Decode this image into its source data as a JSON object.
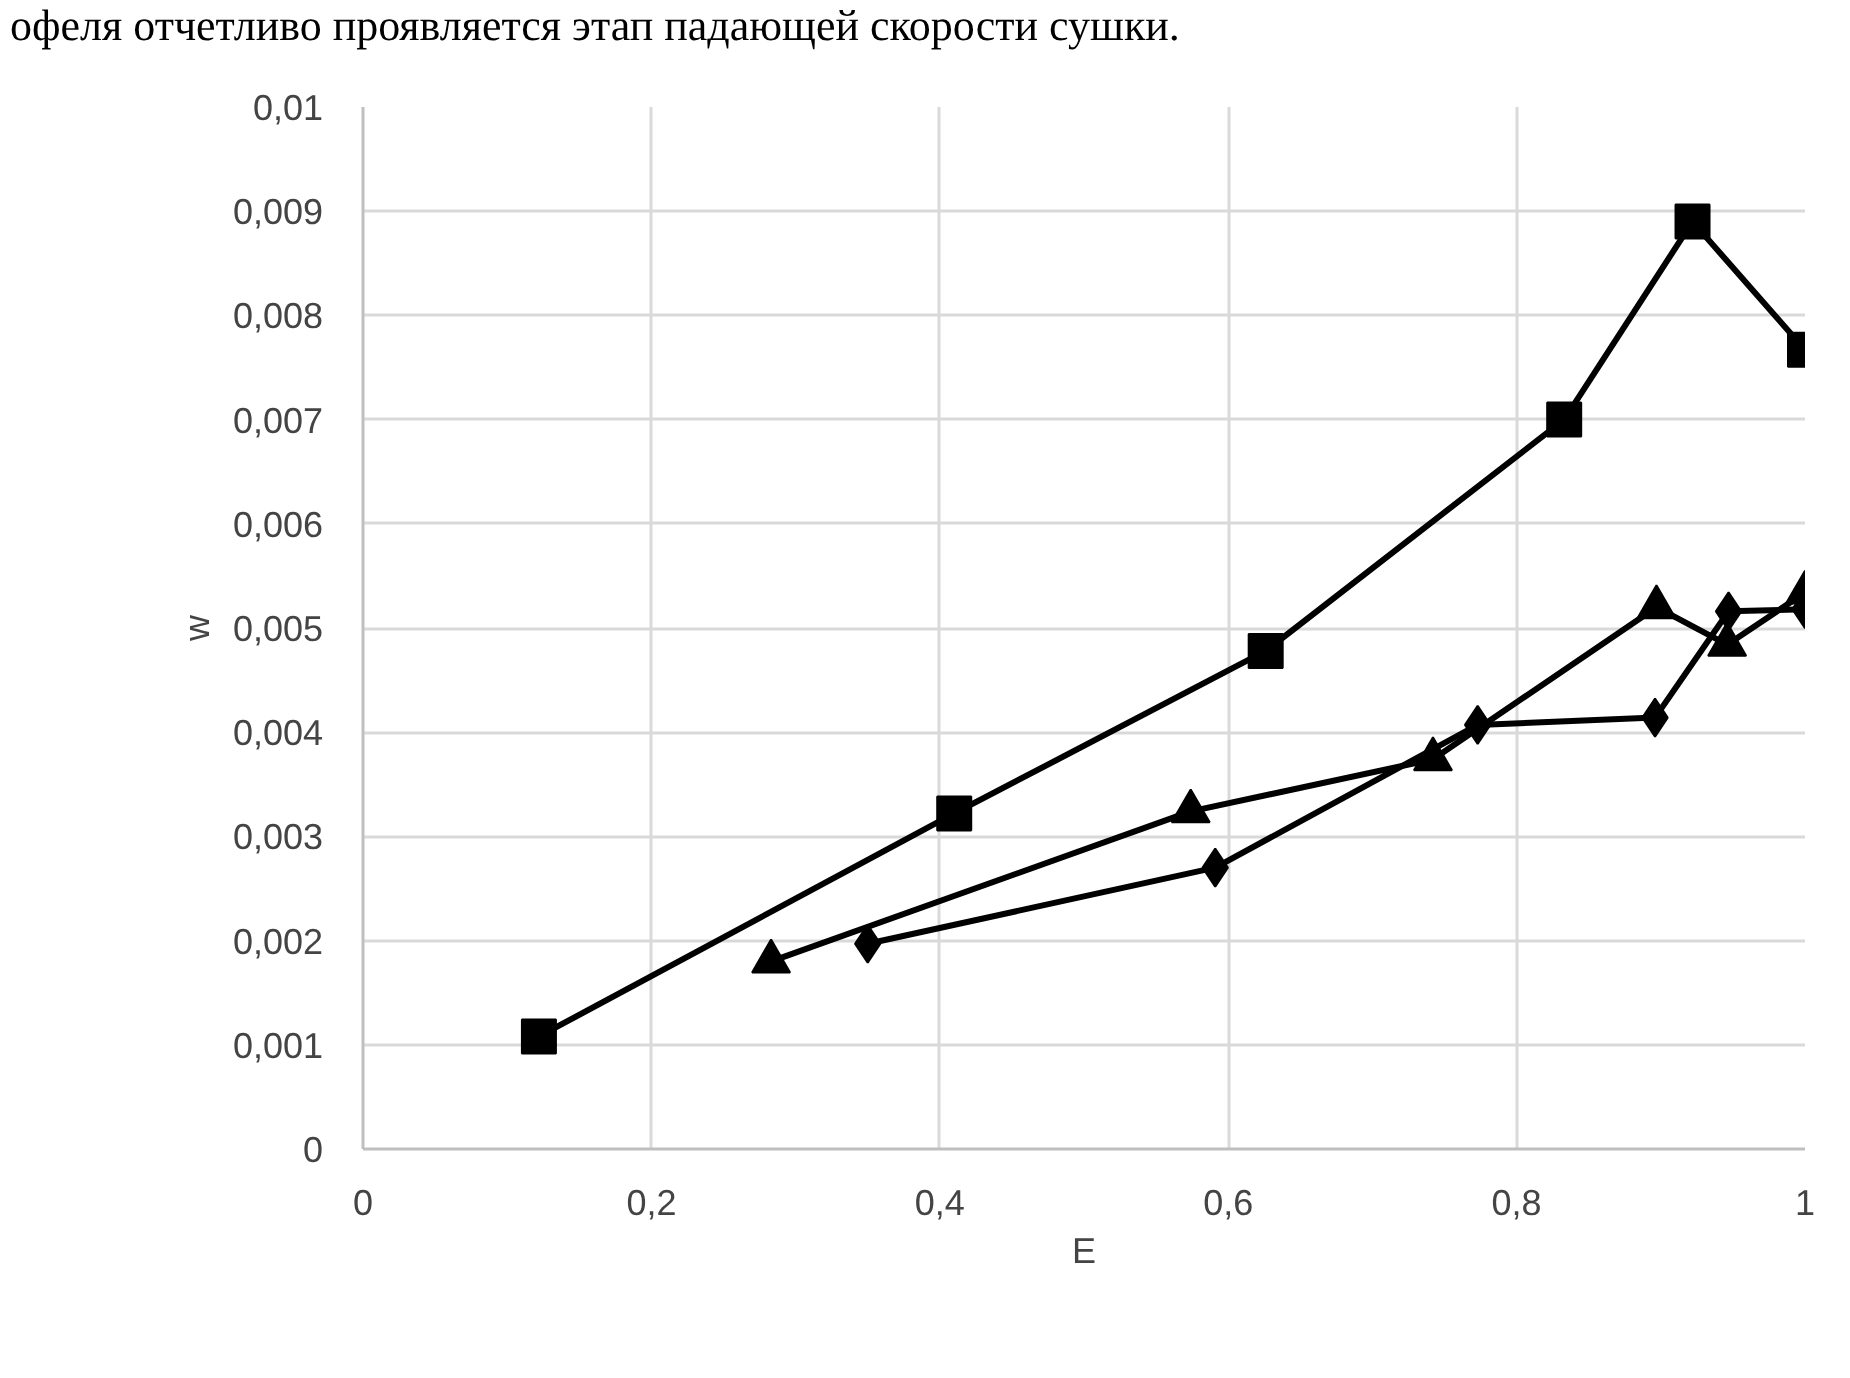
{
  "chart_data": {
    "type": "line",
    "xlabel": "E",
    "ylabel": "w",
    "annotations": [
      "офеля отчетливо проявляется этап падающей скорости сушки."
    ],
    "xlim": [
      0,
      1
    ],
    "xticks": [
      0,
      {
        "value": 0.2,
        "label": "0,2"
      },
      {
        "value": 0.4,
        "label": "0,4"
      },
      {
        "value": 0.6,
        "label": "0,6"
      },
      {
        "value": 0.8,
        "label": "0,8"
      },
      1
    ],
    "ylim": [
      0,
      0.01
    ],
    "yticks": [
      0,
      {
        "value": 0.001,
        "label": "0,001"
      },
      {
        "value": 0.002,
        "label": "0,002"
      },
      {
        "value": 0.003,
        "label": "0,003"
      },
      {
        "value": 0.004,
        "label": "0,004"
      },
      {
        "value": 0.005,
        "label": "0,005"
      },
      {
        "value": 0.006,
        "label": "0,006"
      },
      {
        "value": 0.007,
        "label": "0,007"
      },
      {
        "value": 0.008,
        "label": "0,008"
      },
      {
        "value": 0.009,
        "label": "0,009"
      },
      {
        "value": 0.01,
        "label": "0,01"
      }
    ],
    "grid": true,
    "line_style": "solid",
    "series": [
      {
        "color": "#000000",
        "marker": "square",
        "x": [
          0.122,
          0.41,
          0.626,
          0.833,
          0.922,
          1.0
        ],
        "values": [
          0.00108,
          0.00322,
          0.00478,
          0.007,
          0.0089,
          0.00767
        ]
      },
      {
        "color": "#000000",
        "marker": "triangle",
        "x": [
          0.283,
          0.574,
          0.742,
          0.897,
          0.946,
          1.0
        ],
        "values": [
          0.0018,
          0.00324,
          0.00374,
          0.0052,
          0.00484,
          0.00534
        ]
      },
      {
        "color": "#000000",
        "marker": "diamond",
        "x": [
          0.35,
          0.591,
          0.773,
          0.896,
          0.947,
          1.0
        ],
        "values": [
          0.00197,
          0.0027,
          0.00407,
          0.00414,
          0.00516,
          0.00518
        ]
      }
    ]
  }
}
